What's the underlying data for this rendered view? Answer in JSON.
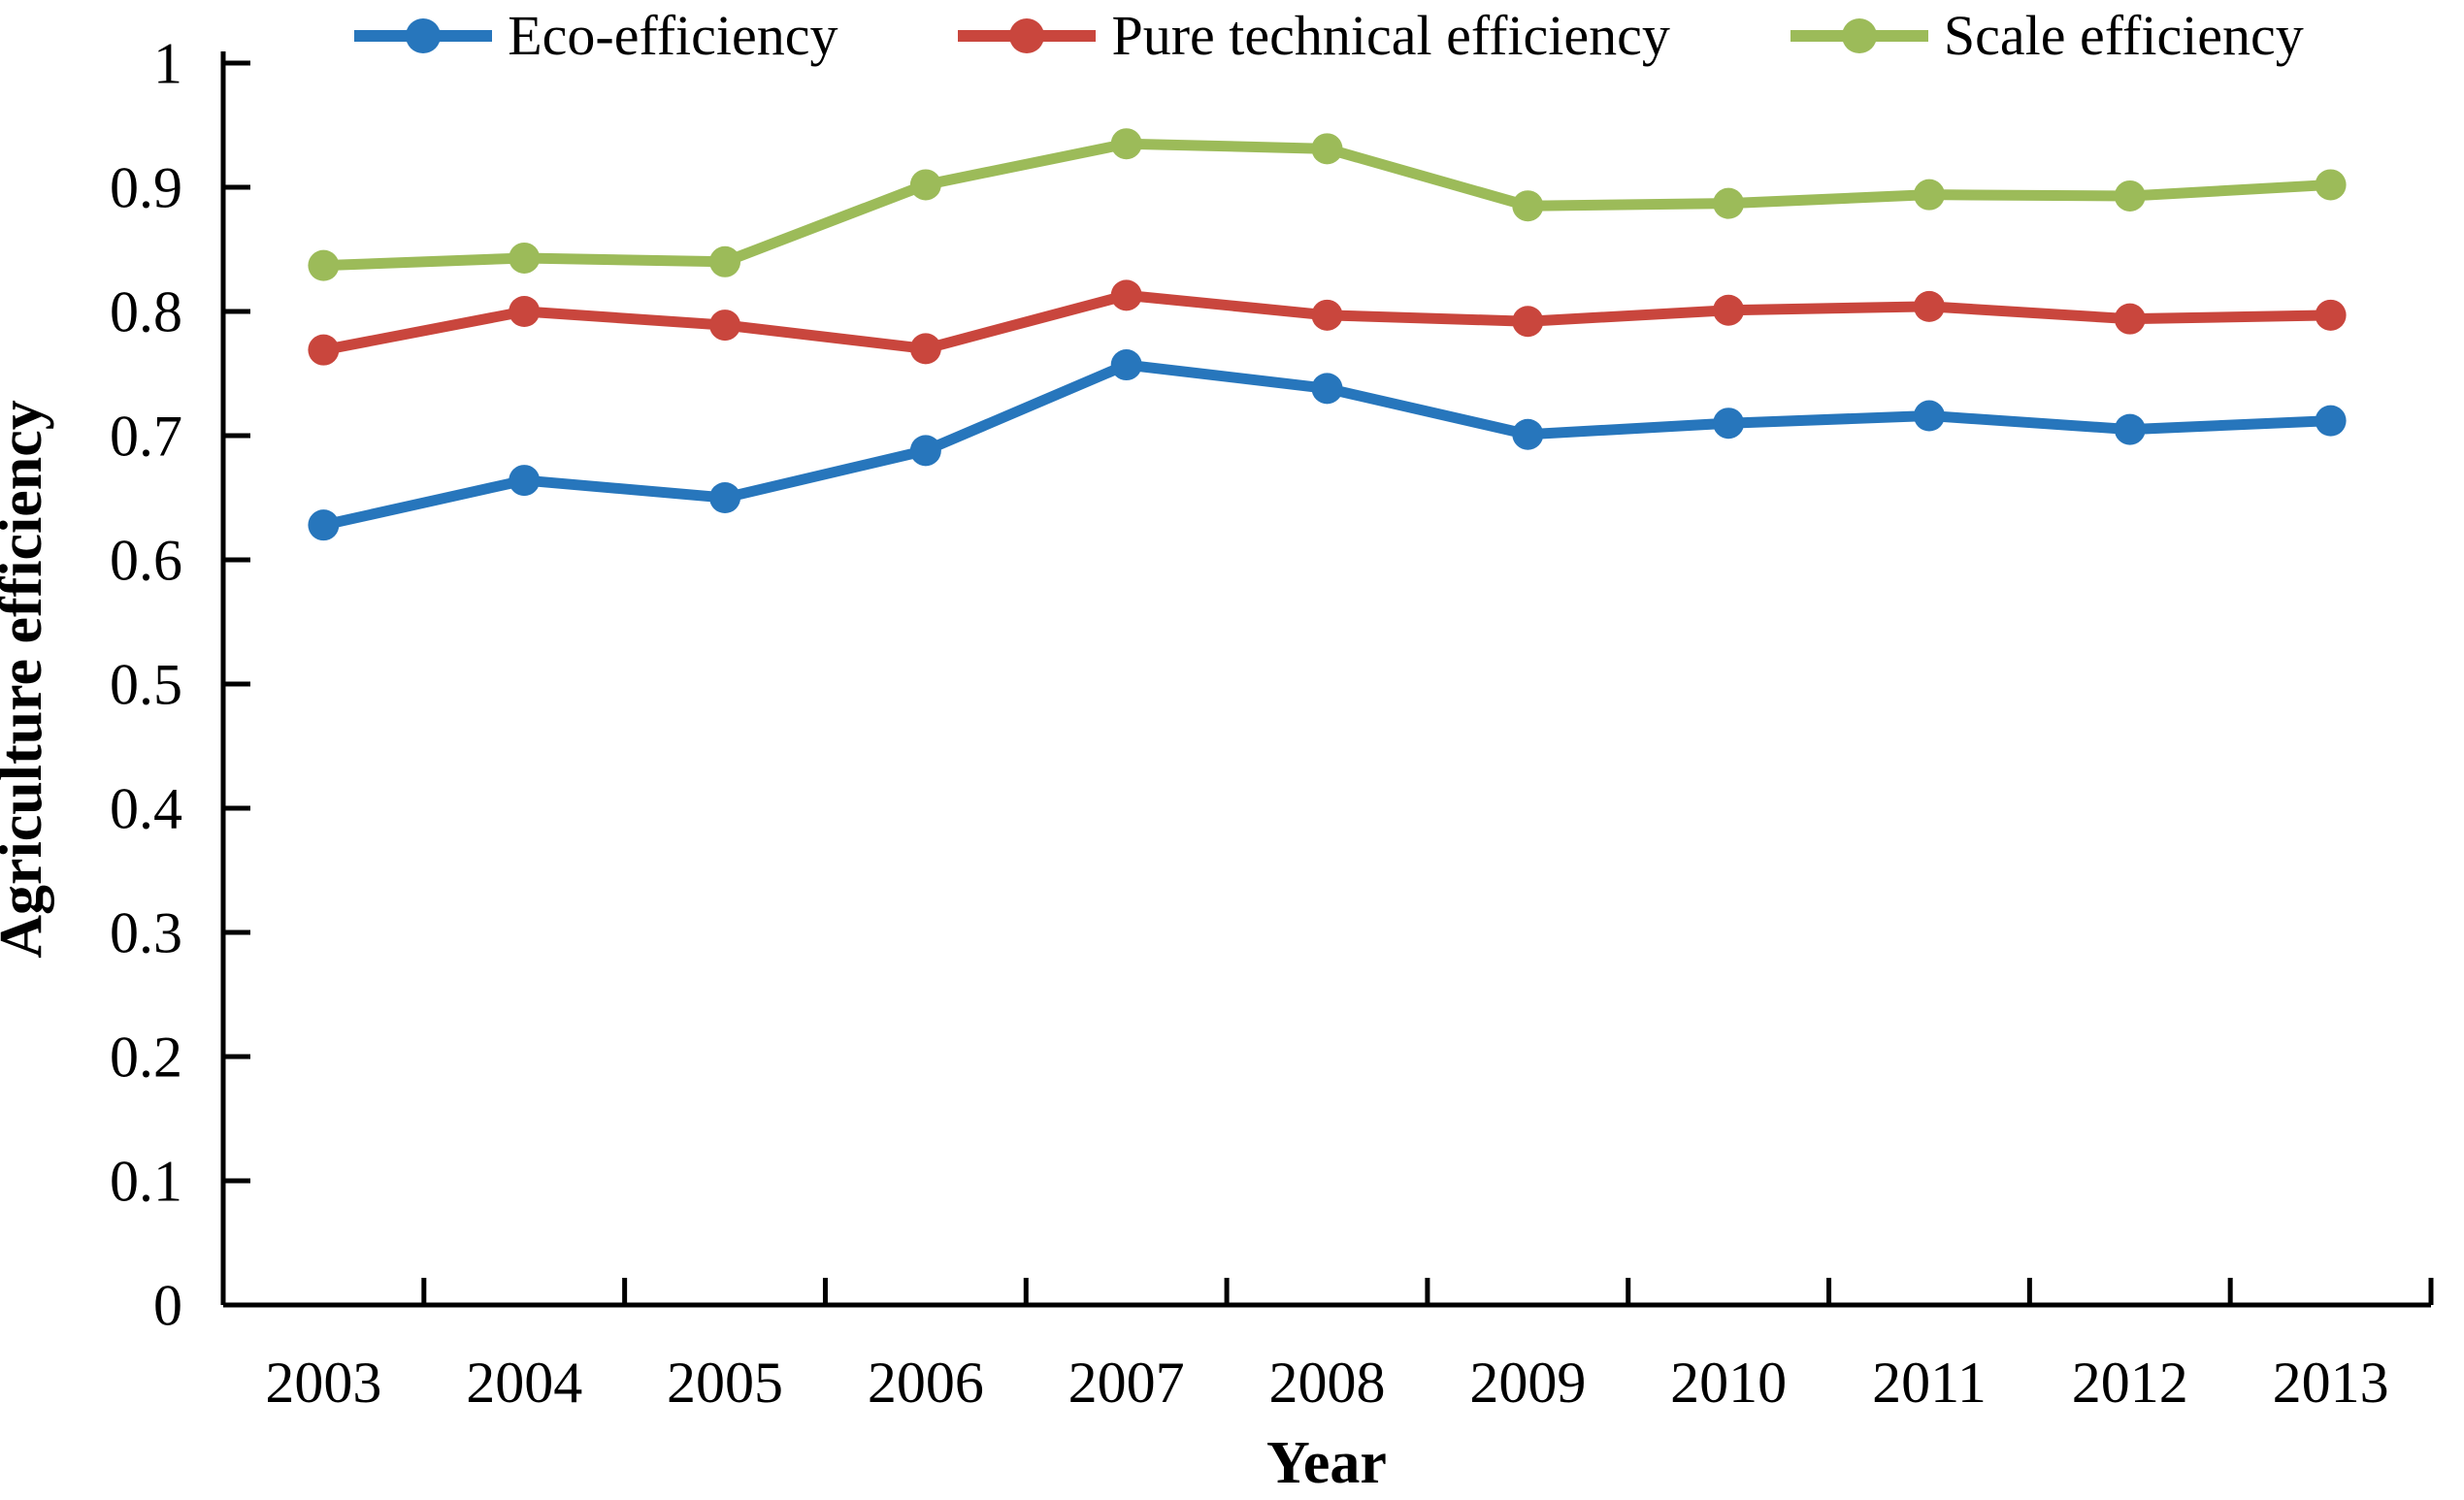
{
  "figure": {
    "background": "#ffffff",
    "axis_color": "#000000"
  },
  "chart_data": {
    "type": "line",
    "title": "",
    "xlabel": "Year",
    "ylabel": "Agriculture efficiency",
    "categories": [
      "2003",
      "2004",
      "2005",
      "2006",
      "2007",
      "2008",
      "2009",
      "2010",
      "2011",
      "2012",
      "2013"
    ],
    "series": [
      {
        "name": "Eco-efficiency",
        "color": "#2776BC",
        "marker": "circle",
        "values": [
          0.628,
          0.664,
          0.65,
          0.688,
          0.757,
          0.738,
          0.701,
          0.71,
          0.716,
          0.705,
          0.712
        ]
      },
      {
        "name": "Pure technical efficiency",
        "color": "#C9463D",
        "marker": "circle",
        "values": [
          0.769,
          0.8,
          0.789,
          0.77,
          0.813,
          0.797,
          0.792,
          0.801,
          0.804,
          0.794,
          0.797
        ]
      },
      {
        "name": "Scale efficiency",
        "color": "#9CBB59",
        "marker": "circle",
        "values": [
          0.837,
          0.843,
          0.84,
          0.902,
          0.935,
          0.931,
          0.885,
          0.887,
          0.894,
          0.893,
          0.902
        ]
      }
    ],
    "ylim": [
      0,
      1
    ],
    "ytick_values": [
      0,
      0.1,
      0.2,
      0.3,
      0.4,
      0.5,
      0.6,
      0.7,
      0.8,
      0.9,
      1
    ],
    "ytick_labels": [
      "0",
      "0.1",
      "0.2",
      "0.3",
      "0.4",
      "0.5",
      "0.6",
      "0.7",
      "0.8",
      "0.9",
      "1"
    ],
    "legend_position": "top",
    "grid": false,
    "tick_style": "inside"
  }
}
